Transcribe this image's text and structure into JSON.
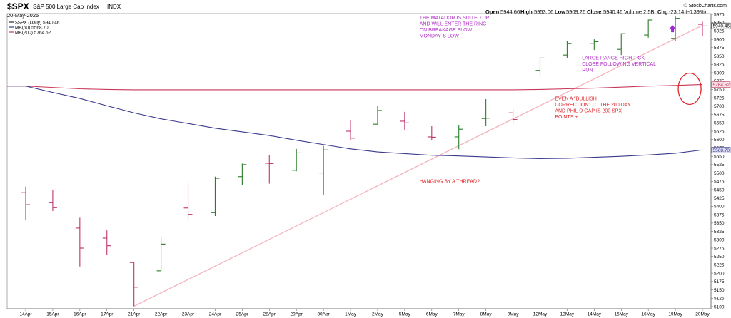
{
  "header": {
    "symbol": "$SPX",
    "name": "S&P 500 Large Cap Index",
    "exchange": "INDX",
    "date": "20-May-2025",
    "brand": "© StockCharts.com",
    "ohlc": {
      "open_label": "Open",
      "open": "5944.66",
      "high_label": "High",
      "high": "5953.06",
      "low_label": "Low",
      "low": "5909.26",
      "close_label": "Close",
      "close": "5940.46",
      "volume": "Volume 2.5B",
      "chg_label": "Chg",
      "chg": "-23.14 (-0.39%)"
    }
  },
  "legend": [
    {
      "text": "$SPX (Daily) 5940.46",
      "color": "#000000"
    },
    {
      "text": "MA(50) 5568.70",
      "color": "#3a3a8c"
    },
    {
      "text": "MA(200) 5764.52",
      "color": "#c8385a"
    }
  ],
  "annotations": [
    {
      "key": "matador",
      "color": "#b02cc8",
      "lines": [
        "THE MATADOR IS SUITED UP",
        "AND WILL ENTER THE RING",
        "ON BREAKAGE BLOW",
        "MONDAY`S LOW"
      ],
      "x": "7May",
      "y": 5960
    },
    {
      "key": "large-range",
      "color": "#b02cc8",
      "lines": [
        "LARGE RANGE HIGH TICK",
        "CLOSE FOLLOWING VERTICAL",
        "RUN"
      ],
      "x": "15May",
      "y": 5840
    },
    {
      "key": "bullish-correction",
      "color": "#e0262b",
      "lines": [
        "EVEN A \"BULLISH",
        "CORRECTION\" TO THE 200 DAY",
        "AND PHIL D GAP IS 200 SPX",
        "POINTS +"
      ],
      "x": "14May",
      "y": 5718
    },
    {
      "key": "hanging",
      "color": "#e0262b",
      "lines": [
        "HANGING BY A THREAD?"
      ],
      "x": "7May",
      "y": 5470
    }
  ],
  "price_labels": [
    {
      "key": "last",
      "text": "5940.46",
      "value": 5940.46,
      "color": "#000000",
      "bg": "#ffffff"
    },
    {
      "key": "ma200",
      "text": "5764.52",
      "value": 5764.52,
      "color": "#c8385a",
      "bg": "#f6dce3"
    },
    {
      "key": "ma50",
      "text": "5568.70",
      "value": 5568.7,
      "color": "#3a3a8c",
      "bg": "#dcdcf0"
    }
  ],
  "colors": {
    "up": "#2a7d2a",
    "down": "#c0326e",
    "ma50": "#3a3a8c",
    "ma200": "#c8385a",
    "trendline": "#f3b8c2",
    "circle": "#e0262b",
    "arrow": "#9b2ad4"
  },
  "chart_data": {
    "type": "ohlc",
    "title": "$SPX S&P 500 Large Cap Index INDX",
    "ylim": [
      5100,
      5975
    ],
    "y_axis_side": "right",
    "y_tick_step": 25,
    "x_tick_labels": [
      "14Apr",
      "15Apr",
      "16Apr",
      "17Apr",
      "21Apr",
      "22Apr",
      "23Apr",
      "24Apr",
      "25Apr",
      "28Apr",
      "29Apr",
      "30Apr",
      "1May",
      "2May",
      "5May",
      "6May",
      "7May",
      "8May",
      "9May",
      "12May",
      "13May",
      "14May",
      "15May",
      "16May",
      "19May",
      "20May"
    ],
    "series": [
      {
        "name": "$SPX (Daily)",
        "bars": [
          {
            "x": "14Apr",
            "o": 5441,
            "h": 5459,
            "l": 5358,
            "c": 5405
          },
          {
            "x": "15Apr",
            "o": 5411,
            "h": 5450,
            "l": 5386,
            "c": 5396
          },
          {
            "x": "16Apr",
            "o": 5335,
            "h": 5366,
            "l": 5220,
            "c": 5275
          },
          {
            "x": "17Apr",
            "o": 5305,
            "h": 5328,
            "l": 5255,
            "c": 5282
          },
          {
            "x": "21Apr",
            "o": 5232,
            "h": 5232,
            "l": 5101,
            "c": 5158
          },
          {
            "x": "22Apr",
            "o": 5207,
            "h": 5309,
            "l": 5207,
            "c": 5287
          },
          {
            "x": "23Apr",
            "o": 5395,
            "h": 5469,
            "l": 5356,
            "c": 5376
          },
          {
            "x": "24Apr",
            "o": 5381,
            "h": 5489,
            "l": 5371,
            "c": 5484
          },
          {
            "x": "25Apr",
            "o": 5489,
            "h": 5528,
            "l": 5463,
            "c": 5525
          },
          {
            "x": "28Apr",
            "o": 5529,
            "h": 5553,
            "l": 5468,
            "c": 5528
          },
          {
            "x": "29Apr",
            "o": 5508,
            "h": 5572,
            "l": 5505,
            "c": 5560
          },
          {
            "x": "30Apr",
            "o": 5500,
            "h": 5581,
            "l": 5434,
            "c": 5569
          },
          {
            "x": "1May",
            "o": 5625,
            "h": 5658,
            "l": 5597,
            "c": 5604
          },
          {
            "x": "2May",
            "o": 5646,
            "h": 5700,
            "l": 5646,
            "c": 5687
          },
          {
            "x": "5May",
            "o": 5655,
            "h": 5683,
            "l": 5628,
            "c": 5650
          },
          {
            "x": "6May",
            "o": 5608,
            "h": 5640,
            "l": 5598,
            "c": 5607
          },
          {
            "x": "7May",
            "o": 5608,
            "h": 5643,
            "l": 5571,
            "c": 5631
          },
          {
            "x": "8May",
            "o": 5663,
            "h": 5721,
            "l": 5640,
            "c": 5664
          },
          {
            "x": "9May",
            "o": 5680,
            "h": 5691,
            "l": 5647,
            "c": 5660
          },
          {
            "x": "12May",
            "o": 5807,
            "h": 5844,
            "l": 5787,
            "c": 5844
          },
          {
            "x": "13May",
            "o": 5853,
            "h": 5894,
            "l": 5845,
            "c": 5887
          },
          {
            "x": "14May",
            "o": 5888,
            "h": 5900,
            "l": 5868,
            "c": 5893
          },
          {
            "x": "15May",
            "o": 5870,
            "h": 5918,
            "l": 5853,
            "c": 5917
          },
          {
            "x": "16May",
            "o": 5913,
            "h": 5959,
            "l": 5905,
            "c": 5958
          },
          {
            "x": "19May",
            "o": 5903,
            "h": 5969,
            "l": 5895,
            "c": 5963
          },
          {
            "x": "20May",
            "o": 5945,
            "h": 5953,
            "l": 5909,
            "c": 5940
          }
        ]
      },
      {
        "name": "MA(50)",
        "values": [
          5760,
          5741,
          5723,
          5701,
          5680,
          5662,
          5648,
          5634,
          5623,
          5612,
          5598,
          5585,
          5572,
          5563,
          5558,
          5553,
          5551,
          5548,
          5545,
          5543,
          5544,
          5547,
          5550,
          5554,
          5559,
          5569
        ]
      },
      {
        "name": "MA(200)",
        "values": [
          5760,
          5756,
          5752,
          5750,
          5749,
          5749,
          5749,
          5749,
          5749,
          5749,
          5749,
          5749,
          5749,
          5749,
          5749,
          5749,
          5749,
          5749,
          5749,
          5750,
          5752,
          5754,
          5757,
          5760,
          5762,
          5765
        ]
      },
      {
        "name": "Trendline",
        "values": [
          {
            "x": "21Apr",
            "y": 5101
          },
          {
            "x": "20May",
            "y": 5942
          }
        ]
      }
    ],
    "highlight_circle": {
      "x": "19May",
      "y": 5752
    },
    "arrow": {
      "x": "19May",
      "y": 5930
    }
  }
}
